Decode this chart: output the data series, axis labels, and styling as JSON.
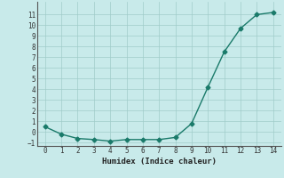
{
  "x": [
    0,
    1,
    2,
    3,
    4,
    5,
    6,
    7,
    8,
    9,
    10,
    11,
    12,
    13,
    14
  ],
  "y": [
    0.5,
    -0.2,
    -0.6,
    -0.7,
    -0.85,
    -0.7,
    -0.7,
    -0.7,
    -0.5,
    0.8,
    4.2,
    7.5,
    9.7,
    11.0,
    11.2
  ],
  "xlabel": "Humidex (Indice chaleur)",
  "xlim": [
    -0.5,
    14.5
  ],
  "ylim": [
    -1.3,
    12.2
  ],
  "yticks": [
    -1,
    0,
    1,
    2,
    3,
    4,
    5,
    6,
    7,
    8,
    9,
    10,
    11
  ],
  "xticks": [
    0,
    1,
    2,
    3,
    4,
    5,
    6,
    7,
    8,
    9,
    10,
    11,
    12,
    13,
    14
  ],
  "line_color": "#1a7a6a",
  "bg_color": "#c8eaea",
  "grid_color": "#a0ccca",
  "marker": "D",
  "marker_size": 2.5,
  "line_width": 1.0
}
